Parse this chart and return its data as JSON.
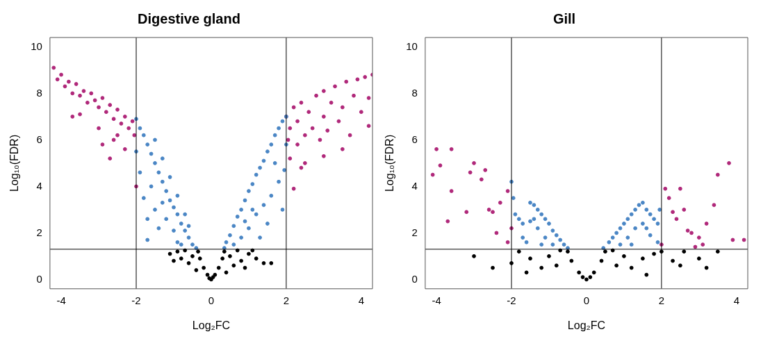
{
  "chart_data": [
    {
      "type": "scatter",
      "title": "Digestive gland",
      "xlabel": "Log₂FC",
      "ylabel": "Log₁₀(FDR)",
      "xlim": [
        -4.3,
        4.3
      ],
      "ylim": [
        -0.4,
        10.4
      ],
      "xticks": [
        -4,
        -2,
        0,
        2,
        4
      ],
      "yticks": [
        0,
        2,
        4,
        6,
        8,
        10
      ],
      "grid": false,
      "legend": false,
      "marker": "circle",
      "ref_lines": [
        {
          "axis": "x",
          "value": -2,
          "color": "#000000"
        },
        {
          "axis": "x",
          "value": 2,
          "color": "#000000"
        },
        {
          "axis": "y",
          "value": 1.3,
          "color": "#000000"
        }
      ],
      "series": [
        {
          "color": "#000000",
          "x": [
            0,
            -0.1,
            0.1,
            -0.2,
            0.2,
            -0.3,
            0.3,
            -0.35,
            0.35,
            -0.5,
            0.5,
            -0.6,
            0.6,
            -0.8,
            0.8,
            -1.0,
            1.0,
            -0.7,
            0.7,
            1.2,
            1.4,
            1.6,
            -1.1,
            -0.4,
            0.4,
            1.1,
            -0.9,
            0.9,
            -0.05,
            0.05
          ],
          "values": [
            0,
            0.2,
            0.2,
            0.5,
            0.5,
            0.9,
            0.9,
            1.2,
            1.2,
            1.0,
            1.0,
            0.7,
            0.6,
            0.9,
            0.8,
            0.8,
            1.1,
            1.25,
            1.25,
            0.9,
            0.7,
            0.7,
            1.1,
            0.4,
            0.3,
            1.25,
            1.2,
            0.5,
            0.05,
            0.1
          ]
        },
        {
          "color": "#4a86c5",
          "x": [
            -2.0,
            -1.9,
            -1.8,
            -1.7,
            -1.6,
            -1.5,
            -1.4,
            -1.3,
            -1.2,
            -1.1,
            -1.0,
            -0.9,
            -0.8,
            -0.7,
            -0.6,
            -0.5,
            -0.4,
            -2.0,
            -1.9,
            -1.8,
            -1.7,
            -1.6,
            -1.5,
            -1.4,
            -1.3,
            -1.2,
            -1.0,
            -0.9,
            -0.8,
            -1.7,
            -1.5,
            -1.3,
            -1.1,
            -0.9,
            -0.7,
            -0.6,
            0.35,
            0.4,
            0.5,
            0.6,
            0.7,
            0.8,
            0.9,
            1.0,
            1.1,
            1.2,
            1.3,
            1.4,
            1.5,
            1.6,
            1.7,
            1.8,
            1.9,
            2.0,
            0.6,
            0.8,
            1.0,
            1.2,
            1.4,
            1.6,
            1.8,
            1.9,
            1.5,
            1.3,
            1.7,
            1.1,
            0.9,
            2.0,
            1.95
          ],
          "values": [
            6.9,
            6.5,
            6.2,
            5.8,
            5.4,
            5.0,
            4.6,
            4.2,
            3.8,
            3.4,
            3.1,
            2.8,
            2.4,
            2.1,
            1.8,
            1.5,
            1.35,
            5.5,
            4.6,
            3.5,
            2.6,
            4.0,
            3.0,
            2.2,
            3.3,
            2.6,
            2.1,
            1.6,
            1.5,
            1.7,
            6.0,
            5.2,
            4.4,
            3.6,
            2.8,
            2.3,
            1.35,
            1.6,
            1.9,
            2.3,
            2.7,
            3.0,
            3.4,
            3.8,
            4.1,
            4.5,
            4.8,
            5.1,
            5.5,
            5.8,
            6.2,
            6.5,
            6.8,
            7.0,
            1.5,
            1.8,
            2.2,
            2.8,
            3.2,
            3.6,
            4.2,
            3.0,
            2.4,
            1.8,
            5.0,
            3.0,
            2.5,
            5.8,
            4.7
          ]
        },
        {
          "color": "#b0287a",
          "x": [
            -4.2,
            -4.1,
            -4.0,
            -3.9,
            -3.8,
            -3.7,
            -3.6,
            -3.5,
            -3.4,
            -3.3,
            -3.2,
            -3.1,
            -3.0,
            -2.9,
            -2.8,
            -2.7,
            -2.6,
            -2.5,
            -2.4,
            -2.3,
            -2.2,
            -2.1,
            -2.05,
            -3.5,
            -3.0,
            -2.6,
            -2.3,
            -2.7,
            -2.9,
            -2.0,
            -3.7,
            -2.5,
            2.0,
            2.05,
            2.1,
            2.1,
            2.2,
            2.3,
            2.3,
            2.4,
            2.5,
            2.5,
            2.6,
            2.7,
            2.8,
            2.9,
            3.0,
            3.0,
            3.1,
            3.2,
            3.3,
            3.4,
            3.5,
            3.6,
            3.7,
            3.8,
            3.9,
            4.0,
            4.1,
            4.2,
            4.3,
            3.5,
            2.2,
            4.2,
            3.0,
            2.4
          ],
          "values": [
            9.1,
            8.6,
            8.8,
            8.3,
            8.5,
            8.0,
            8.4,
            7.9,
            8.1,
            7.6,
            8.0,
            7.7,
            7.4,
            7.8,
            7.2,
            7.5,
            6.9,
            7.3,
            6.7,
            7.0,
            6.5,
            6.8,
            6.2,
            7.1,
            6.5,
            6.0,
            5.6,
            5.2,
            5.8,
            4.0,
            7.0,
            6.2,
            7.0,
            6.0,
            5.2,
            6.5,
            7.4,
            5.8,
            6.8,
            7.6,
            6.2,
            5.0,
            7.2,
            6.5,
            7.9,
            6.0,
            7.0,
            8.1,
            6.4,
            7.6,
            8.3,
            6.8,
            7.4,
            8.5,
            6.2,
            7.9,
            8.6,
            7.2,
            8.7,
            7.8,
            8.8,
            5.6,
            3.9,
            6.6,
            5.3,
            4.8
          ]
        }
      ]
    },
    {
      "type": "scatter",
      "title": "Gill",
      "xlabel": "Log₂FC",
      "ylabel": "Log₁₀(FDR)",
      "xlim": [
        -4.3,
        4.3
      ],
      "ylim": [
        -0.4,
        10.4
      ],
      "xticks": [
        -4,
        -2,
        0,
        2,
        4
      ],
      "yticks": [
        0,
        2,
        4,
        6,
        8,
        10
      ],
      "grid": false,
      "legend": false,
      "marker": "circle",
      "ref_lines": [
        {
          "axis": "x",
          "value": -2,
          "color": "#000000"
        },
        {
          "axis": "x",
          "value": 2,
          "color": "#000000"
        },
        {
          "axis": "y",
          "value": 1.3,
          "color": "#000000"
        }
      ],
      "series": [
        {
          "color": "#000000",
          "x": [
            0,
            -0.2,
            0.2,
            -0.4,
            0.4,
            -0.5,
            0.5,
            -0.8,
            0.8,
            -1.0,
            1.0,
            -1.2,
            1.2,
            -1.5,
            1.5,
            -1.8,
            1.8,
            -2.0,
            2.0,
            -2.5,
            2.3,
            2.6,
            3.0,
            3.5,
            -3.0,
            -1.6,
            1.6,
            -0.1,
            0.1,
            -0.7,
            0.7,
            2.5,
            3.2
          ],
          "values": [
            0,
            0.3,
            0.3,
            0.8,
            0.8,
            1.2,
            1.2,
            0.6,
            0.6,
            1.0,
            1.0,
            0.5,
            0.5,
            0.9,
            0.9,
            1.2,
            1.1,
            0.7,
            1.2,
            0.5,
            0.8,
            1.2,
            0.9,
            1.2,
            1.0,
            0.3,
            0.2,
            0.1,
            0.1,
            1.25,
            1.25,
            0.6,
            0.5
          ]
        },
        {
          "color": "#4a86c5",
          "x": [
            -1.9,
            -1.8,
            -1.7,
            -1.6,
            -1.5,
            -1.4,
            -1.3,
            -1.2,
            -1.1,
            -1.0,
            -0.9,
            -0.8,
            -0.7,
            -0.6,
            -0.5,
            -1.3,
            -1.1,
            -0.9,
            -1.5,
            -1.7,
            -2.0,
            -1.95,
            -1.2,
            -1.4,
            0.45,
            0.6,
            0.7,
            0.8,
            0.9,
            1.0,
            1.1,
            1.2,
            1.3,
            1.4,
            1.5,
            1.6,
            1.7,
            1.8,
            1.9,
            1.3,
            1.1,
            0.9,
            1.5,
            1.7,
            1.9,
            1.95,
            1.2,
            1.6
          ],
          "values": [
            2.8,
            2.6,
            2.4,
            1.6,
            3.3,
            3.2,
            3.0,
            2.8,
            2.6,
            2.4,
            2.1,
            1.9,
            1.7,
            1.5,
            1.35,
            2.2,
            1.8,
            1.5,
            2.5,
            1.8,
            4.2,
            3.5,
            1.5,
            2.6,
            1.35,
            1.6,
            1.8,
            2.0,
            2.2,
            2.4,
            2.6,
            2.8,
            3.0,
            3.2,
            3.3,
            3.0,
            2.8,
            2.6,
            2.4,
            2.2,
            1.8,
            1.5,
            2.4,
            1.9,
            1.6,
            3.0,
            1.5,
            2.2
          ]
        },
        {
          "color": "#b0287a",
          "x": [
            -4.1,
            -4.0,
            -3.9,
            -3.6,
            -3.7,
            -3.6,
            -3.2,
            -3.0,
            -3.1,
            -2.8,
            -2.7,
            -2.6,
            -2.5,
            -2.4,
            -2.3,
            -2.1,
            -2.0,
            -2.1,
            2.0,
            2.1,
            2.2,
            2.3,
            2.4,
            2.5,
            2.6,
            2.8,
            2.9,
            3.0,
            3.1,
            3.2,
            3.4,
            3.5,
            3.8,
            3.9,
            4.2,
            2.7
          ],
          "values": [
            4.5,
            5.6,
            4.9,
            5.6,
            2.5,
            3.8,
            2.9,
            5.0,
            4.6,
            4.3,
            4.7,
            3.0,
            2.9,
            2.0,
            3.3,
            3.8,
            2.2,
            1.6,
            1.5,
            3.9,
            3.5,
            2.9,
            2.6,
            3.9,
            3.0,
            2.0,
            1.4,
            1.8,
            1.5,
            2.4,
            3.2,
            4.5,
            5.0,
            1.7,
            1.7,
            2.1
          ]
        }
      ]
    }
  ]
}
